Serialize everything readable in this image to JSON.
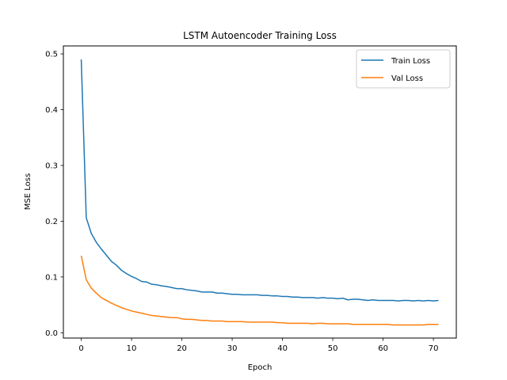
{
  "chart_data": {
    "type": "line",
    "title": "LSTM Autoencoder Training Loss",
    "xlabel": "Epoch",
    "ylabel": "MSE Loss",
    "xlim": [
      -3.55,
      74.55
    ],
    "ylim": [
      -0.0095,
      0.5143
    ],
    "xticks": [
      0,
      10,
      20,
      30,
      40,
      50,
      60,
      70
    ],
    "yticks": [
      0.0,
      0.1,
      0.2,
      0.3,
      0.4,
      0.5
    ],
    "ytick_labels": [
      "0.0",
      "0.1",
      "0.2",
      "0.3",
      "0.4",
      "0.5"
    ],
    "grid": false,
    "legend_position": "top-right",
    "series": [
      {
        "name": "Train Loss",
        "color": "#1f77b4",
        "x": [
          0,
          1,
          2,
          3,
          4,
          5,
          6,
          7,
          8,
          9,
          10,
          11,
          12,
          13,
          14,
          15,
          16,
          17,
          18,
          19,
          20,
          21,
          22,
          23,
          24,
          25,
          26,
          27,
          28,
          29,
          30,
          31,
          32,
          33,
          34,
          35,
          36,
          37,
          38,
          39,
          40,
          41,
          42,
          43,
          44,
          45,
          46,
          47,
          48,
          49,
          50,
          51,
          52,
          53,
          54,
          55,
          56,
          57,
          58,
          59,
          60,
          61,
          62,
          63,
          64,
          65,
          66,
          67,
          68,
          69,
          70,
          71
        ],
        "y": [
          0.49,
          0.206,
          0.178,
          0.162,
          0.15,
          0.139,
          0.128,
          0.121,
          0.112,
          0.106,
          0.101,
          0.097,
          0.092,
          0.091,
          0.087,
          0.086,
          0.084,
          0.083,
          0.081,
          0.079,
          0.079,
          0.077,
          0.076,
          0.075,
          0.073,
          0.073,
          0.073,
          0.071,
          0.071,
          0.07,
          0.069,
          0.069,
          0.068,
          0.068,
          0.068,
          0.068,
          0.067,
          0.067,
          0.066,
          0.066,
          0.065,
          0.065,
          0.064,
          0.064,
          0.063,
          0.063,
          0.063,
          0.062,
          0.063,
          0.062,
          0.062,
          0.061,
          0.062,
          0.059,
          0.06,
          0.06,
          0.059,
          0.058,
          0.059,
          0.058,
          0.058,
          0.058,
          0.058,
          0.057,
          0.058,
          0.058,
          0.057,
          0.058,
          0.057,
          0.058,
          0.057,
          0.058
        ]
      },
      {
        "name": "Val Loss",
        "color": "#ff7f0e",
        "x": [
          0,
          1,
          2,
          3,
          4,
          5,
          6,
          7,
          8,
          9,
          10,
          11,
          12,
          13,
          14,
          15,
          16,
          17,
          18,
          19,
          20,
          21,
          22,
          23,
          24,
          25,
          26,
          27,
          28,
          29,
          30,
          31,
          32,
          33,
          34,
          35,
          36,
          37,
          38,
          39,
          40,
          41,
          42,
          43,
          44,
          45,
          46,
          47,
          48,
          49,
          50,
          51,
          52,
          53,
          54,
          55,
          56,
          57,
          58,
          59,
          60,
          61,
          62,
          63,
          64,
          65,
          66,
          67,
          68,
          69,
          70,
          71
        ],
        "y": [
          0.138,
          0.095,
          0.08,
          0.071,
          0.063,
          0.058,
          0.053,
          0.049,
          0.045,
          0.042,
          0.039,
          0.037,
          0.035,
          0.033,
          0.031,
          0.03,
          0.029,
          0.028,
          0.027,
          0.027,
          0.025,
          0.024,
          0.024,
          0.023,
          0.022,
          0.022,
          0.021,
          0.021,
          0.021,
          0.02,
          0.02,
          0.02,
          0.02,
          0.019,
          0.019,
          0.019,
          0.019,
          0.019,
          0.019,
          0.018,
          0.018,
          0.017,
          0.017,
          0.017,
          0.017,
          0.017,
          0.016,
          0.017,
          0.017,
          0.016,
          0.016,
          0.016,
          0.016,
          0.016,
          0.015,
          0.015,
          0.015,
          0.015,
          0.015,
          0.015,
          0.015,
          0.015,
          0.014,
          0.014,
          0.014,
          0.014,
          0.014,
          0.014,
          0.014,
          0.015,
          0.015,
          0.015
        ]
      }
    ]
  }
}
